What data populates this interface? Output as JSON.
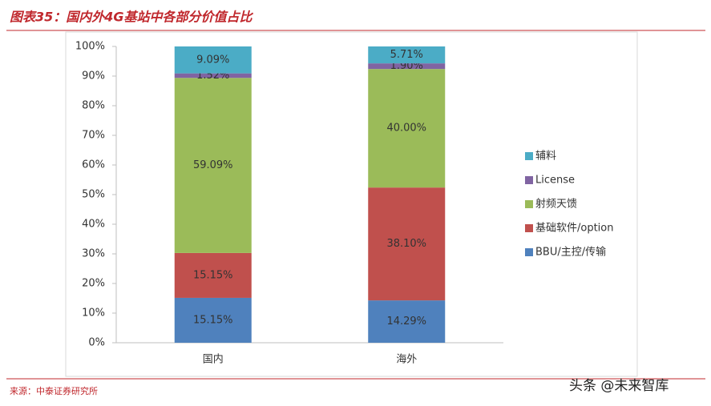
{
  "chart_data": {
    "type": "stacked_bar",
    "title": "图表35：国内外4G基站中各部分价值占比",
    "source": "来源：中泰证券研究所",
    "watermark": "头条 @未来智库",
    "categories": [
      "国内",
      "海外"
    ],
    "series": [
      {
        "name": "BBU/主控/传输",
        "color": "#4f81bd",
        "values": [
          15.15,
          14.29
        ],
        "value_labels": [
          "15.15%",
          "14.29%"
        ]
      },
      {
        "name": "基础软件/option",
        "color": "#c0504d",
        "values": [
          15.15,
          38.1
        ],
        "value_labels": [
          "15.15%",
          "38.10%"
        ]
      },
      {
        "name": "射频天馈",
        "color": "#9bbb59",
        "values": [
          59.09,
          40.0
        ],
        "value_labels": [
          "59.09%",
          "40.00%"
        ]
      },
      {
        "name": "License",
        "color": "#8064a2",
        "values": [
          1.52,
          1.9
        ],
        "value_labels": [
          "1.52%",
          "1.90%"
        ]
      },
      {
        "name": "辅料",
        "color": "#4bacc6",
        "values": [
          9.09,
          5.71
        ],
        "value_labels": [
          "9.09%",
          "5.71%"
        ]
      }
    ],
    "ylim": [
      0,
      100
    ],
    "yticks": [
      {
        "value": 0,
        "label": "0%"
      },
      {
        "value": 10,
        "label": "10%"
      },
      {
        "value": 20,
        "label": "20%"
      },
      {
        "value": 30,
        "label": "30%"
      },
      {
        "value": 40,
        "label": "40%"
      },
      {
        "value": 50,
        "label": "50%"
      },
      {
        "value": 60,
        "label": "60%"
      },
      {
        "value": 70,
        "label": "70%"
      },
      {
        "value": 80,
        "label": "80%"
      },
      {
        "value": 90,
        "label": "90%"
      },
      {
        "value": 100,
        "label": "100%"
      }
    ],
    "legend": "right"
  }
}
